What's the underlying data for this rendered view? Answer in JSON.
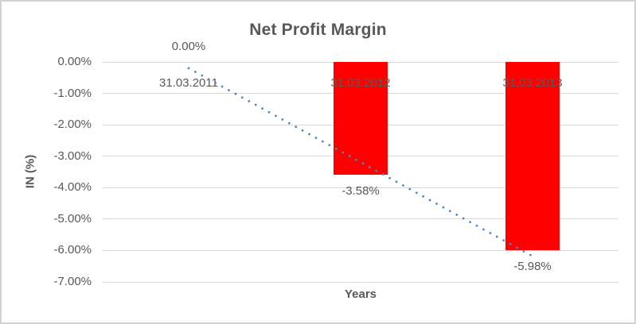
{
  "window": {
    "background": "#ffffff",
    "border_color": "#d2d2d2"
  },
  "colors": {
    "text": "#595959",
    "gridline": "#d9d9d9",
    "bar": "#ff0000",
    "trendline": "#4f86c6"
  },
  "chart_data": {
    "type": "bar",
    "title": "Net Profit Margin",
    "xlabel": "Years",
    "ylabel": "IN (%)",
    "categories": [
      "31.03.2011",
      "31.03.2012",
      "31.03.2013"
    ],
    "series": [
      {
        "name": "Net Profit Margin",
        "color": "#ff0000",
        "values": [
          0.0,
          -3.58,
          -5.98
        ]
      }
    ],
    "data_labels": [
      "0.00%",
      "-3.58%",
      "-5.98%"
    ],
    "ytick_values": [
      0,
      -1,
      -2,
      -3,
      -4,
      -5,
      -6,
      -7
    ],
    "ytick_labels": [
      "0.00%",
      "-1.00%",
      "-2.00%",
      "-3.00%",
      "-4.00%",
      "-5.00%",
      "-6.00%",
      "-7.00%"
    ],
    "ylim": [
      -7,
      0
    ],
    "grid": true,
    "legend": false,
    "trendline": {
      "type": "linear",
      "style": "dotted",
      "color": "#4f86c6",
      "start_value": -0.2,
      "end_value": -6.18
    }
  }
}
